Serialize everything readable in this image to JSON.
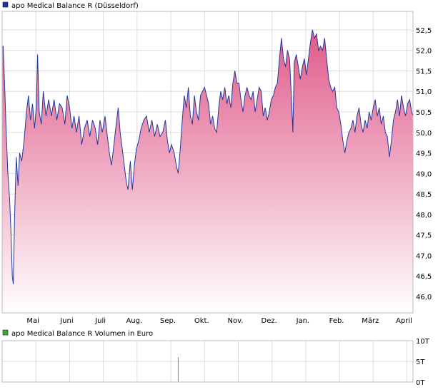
{
  "colors": {
    "price_line": "#1f3a9e",
    "area_top": "#e05a8a",
    "area_bottom": "#ffffff",
    "grid": "#dddddd",
    "frame": "#bbbbbb",
    "volume_bar": "#e05a6a",
    "legend_price_box": "#1f3a9e",
    "legend_volume_box": "#3caa3c"
  },
  "chart_data": [
    {
      "type": "area",
      "legend": "apo Medical Balance R (Düsseldorf)",
      "ylim": [
        45.6,
        52.95
      ],
      "yticks": [
        46.0,
        46.5,
        47.0,
        47.5,
        48.0,
        48.5,
        49.0,
        49.5,
        50.0,
        50.5,
        51.0,
        51.5,
        52.0,
        52.5
      ],
      "ytick_labels": [
        "46,0",
        "46,5",
        "47,0",
        "47,5",
        "48,0",
        "48,5",
        "49,0",
        "49,5",
        "50,0",
        "50,5",
        "51,0",
        "51,5",
        "52,0",
        "52,5"
      ],
      "x_range": [
        0,
        12.18
      ],
      "months": [
        "Mai",
        "Juni",
        "Juli",
        "Aug.",
        "Sep.",
        "Okt.",
        "Nov.",
        "Dez.",
        "Jan.",
        "Feb.",
        "März",
        "April"
      ],
      "grid": true,
      "points": [
        [
          0.0,
          52.1
        ],
        [
          0.03,
          52.1
        ],
        [
          0.08,
          51.0
        ],
        [
          0.12,
          50.0
        ],
        [
          0.17,
          49.0
        ],
        [
          0.22,
          48.4
        ],
        [
          0.26,
          47.6
        ],
        [
          0.3,
          46.5
        ],
        [
          0.33,
          46.3
        ],
        [
          0.37,
          48.0
        ],
        [
          0.42,
          49.4
        ],
        [
          0.47,
          48.7
        ],
        [
          0.52,
          49.5
        ],
        [
          0.58,
          49.3
        ],
        [
          0.65,
          49.8
        ],
        [
          0.72,
          50.5
        ],
        [
          0.78,
          50.9
        ],
        [
          0.84,
          50.3
        ],
        [
          0.9,
          50.7
        ],
        [
          0.96,
          50.1
        ],
        [
          1.01,
          50.6
        ],
        [
          1.05,
          51.9
        ],
        [
          1.1,
          50.5
        ],
        [
          1.16,
          50.2
        ],
        [
          1.22,
          51.0
        ],
        [
          1.3,
          50.4
        ],
        [
          1.38,
          50.8
        ],
        [
          1.46,
          50.4
        ],
        [
          1.54,
          50.8
        ],
        [
          1.62,
          50.3
        ],
        [
          1.7,
          50.7
        ],
        [
          1.78,
          50.6
        ],
        [
          1.86,
          50.2
        ],
        [
          1.93,
          50.9
        ],
        [
          2.0,
          50.6
        ],
        [
          2.07,
          50.1
        ],
        [
          2.13,
          50.4
        ],
        [
          2.2,
          50.0
        ],
        [
          2.28,
          50.4
        ],
        [
          2.36,
          49.7
        ],
        [
          2.44,
          50.1
        ],
        [
          2.52,
          50.3
        ],
        [
          2.6,
          49.9
        ],
        [
          2.68,
          50.3
        ],
        [
          2.76,
          50.1
        ],
        [
          2.83,
          49.7
        ],
        [
          2.9,
          50.3
        ],
        [
          2.97,
          50.0
        ],
        [
          3.05,
          50.4
        ],
        [
          3.12,
          49.9
        ],
        [
          3.18,
          49.5
        ],
        [
          3.24,
          49.2
        ],
        [
          3.3,
          49.6
        ],
        [
          3.38,
          50.2
        ],
        [
          3.44,
          50.6
        ],
        [
          3.5,
          50.0
        ],
        [
          3.56,
          49.6
        ],
        [
          3.62,
          49.2
        ],
        [
          3.68,
          48.8
        ],
        [
          3.73,
          48.6
        ],
        [
          3.8,
          49.3
        ],
        [
          3.86,
          48.6
        ],
        [
          3.92,
          49.2
        ],
        [
          3.98,
          49.6
        ],
        [
          4.05,
          49.8
        ],
        [
          4.12,
          50.1
        ],
        [
          4.2,
          50.3
        ],
        [
          4.28,
          50.4
        ],
        [
          4.36,
          50.0
        ],
        [
          4.44,
          50.3
        ],
        [
          4.52,
          49.9
        ],
        [
          4.6,
          50.2
        ],
        [
          4.68,
          49.9
        ],
        [
          4.76,
          50.0
        ],
        [
          4.84,
          50.3
        ],
        [
          4.9,
          49.8
        ],
        [
          4.96,
          49.5
        ],
        [
          5.02,
          49.7
        ],
        [
          5.1,
          49.5
        ],
        [
          5.16,
          49.2
        ],
        [
          5.22,
          49.0
        ],
        [
          5.28,
          49.6
        ],
        [
          5.34,
          50.3
        ],
        [
          5.4,
          50.9
        ],
        [
          5.46,
          50.6
        ],
        [
          5.52,
          51.1
        ],
        [
          5.58,
          50.4
        ],
        [
          5.64,
          50.2
        ],
        [
          5.7,
          50.9
        ],
        [
          5.76,
          50.5
        ],
        [
          5.82,
          50.3
        ],
        [
          5.88,
          50.9
        ],
        [
          5.94,
          51.0
        ],
        [
          6.0,
          51.1
        ],
        [
          6.06,
          50.9
        ],
        [
          6.12,
          50.7
        ],
        [
          6.18,
          50.2
        ],
        [
          6.24,
          50.4
        ],
        [
          6.3,
          50.1
        ],
        [
          6.36,
          50.0
        ],
        [
          6.42,
          50.6
        ],
        [
          6.48,
          51.0
        ],
        [
          6.54,
          50.8
        ],
        [
          6.6,
          51.1
        ],
        [
          6.66,
          50.7
        ],
        [
          6.72,
          50.9
        ],
        [
          6.78,
          50.6
        ],
        [
          6.84,
          51.2
        ],
        [
          6.9,
          51.5
        ],
        [
          6.96,
          51.2
        ],
        [
          7.02,
          51.2
        ],
        [
          7.08,
          50.8
        ],
        [
          7.14,
          50.5
        ],
        [
          7.2,
          50.9
        ],
        [
          7.26,
          51.1
        ],
        [
          7.32,
          50.9
        ],
        [
          7.38,
          50.8
        ],
        [
          7.44,
          51.0
        ],
        [
          7.5,
          50.5
        ],
        [
          7.56,
          50.8
        ],
        [
          7.62,
          51.1
        ],
        [
          7.68,
          51.0
        ],
        [
          7.74,
          50.4
        ],
        [
          7.8,
          50.6
        ],
        [
          7.86,
          50.3
        ],
        [
          7.92,
          50.5
        ],
        [
          7.98,
          50.8
        ],
        [
          8.04,
          50.9
        ],
        [
          8.1,
          51.1
        ],
        [
          8.16,
          51.2
        ],
        [
          8.22,
          51.8
        ],
        [
          8.28,
          52.3
        ],
        [
          8.34,
          51.8
        ],
        [
          8.4,
          51.6
        ],
        [
          8.46,
          52.0
        ],
        [
          8.52,
          51.8
        ],
        [
          8.58,
          50.8
        ],
        [
          8.62,
          50.0
        ],
        [
          8.66,
          51.7
        ],
        [
          8.72,
          51.9
        ],
        [
          8.78,
          51.6
        ],
        [
          8.84,
          51.3
        ],
        [
          8.9,
          51.6
        ],
        [
          8.96,
          51.8
        ],
        [
          9.02,
          51.4
        ],
        [
          9.08,
          51.8
        ],
        [
          9.14,
          52.2
        ],
        [
          9.2,
          52.5
        ],
        [
          9.26,
          52.3
        ],
        [
          9.32,
          52.4
        ],
        [
          9.38,
          52.0
        ],
        [
          9.44,
          52.1
        ],
        [
          9.5,
          52.0
        ],
        [
          9.56,
          52.3
        ],
        [
          9.62,
          51.8
        ],
        [
          9.68,
          51.3
        ],
        [
          9.74,
          51.1
        ],
        [
          9.8,
          51.0
        ],
        [
          9.86,
          51.1
        ],
        [
          9.92,
          50.6
        ],
        [
          9.98,
          50.5
        ],
        [
          10.04,
          50.2
        ],
        [
          10.1,
          49.8
        ],
        [
          10.16,
          49.5
        ],
        [
          10.22,
          49.8
        ],
        [
          10.28,
          50.0
        ],
        [
          10.34,
          50.1
        ],
        [
          10.4,
          50.3
        ],
        [
          10.46,
          50.0
        ],
        [
          10.52,
          50.4
        ],
        [
          10.58,
          50.6
        ],
        [
          10.64,
          50.2
        ],
        [
          10.7,
          50.0
        ],
        [
          10.76,
          50.3
        ],
        [
          10.82,
          50.1
        ],
        [
          10.88,
          50.5
        ],
        [
          10.94,
          50.3
        ],
        [
          11.0,
          50.6
        ],
        [
          11.06,
          50.8
        ],
        [
          11.12,
          50.4
        ],
        [
          11.18,
          50.6
        ],
        [
          11.24,
          50.2
        ],
        [
          11.3,
          50.4
        ],
        [
          11.36,
          50.0
        ],
        [
          11.42,
          49.9
        ],
        [
          11.48,
          49.4
        ],
        [
          11.54,
          49.8
        ],
        [
          11.6,
          50.3
        ],
        [
          11.66,
          50.5
        ],
        [
          11.72,
          50.8
        ],
        [
          11.78,
          50.4
        ],
        [
          11.84,
          50.9
        ],
        [
          11.9,
          50.6
        ],
        [
          11.96,
          50.4
        ],
        [
          12.02,
          50.7
        ],
        [
          12.08,
          50.8
        ],
        [
          12.14,
          50.5
        ],
        [
          12.18,
          50.4
        ]
      ]
    },
    {
      "type": "bar",
      "legend": "apo Medical Balance R Volumen in Euro",
      "ylim": [
        0,
        10
      ],
      "yticks": [
        0,
        5,
        10
      ],
      "ytick_labels": [
        "0T",
        "5T",
        "10T"
      ],
      "x_range": [
        0,
        12.18
      ],
      "grid": true,
      "bars": [
        {
          "x": 5.22,
          "value": 6.0
        }
      ]
    }
  ]
}
